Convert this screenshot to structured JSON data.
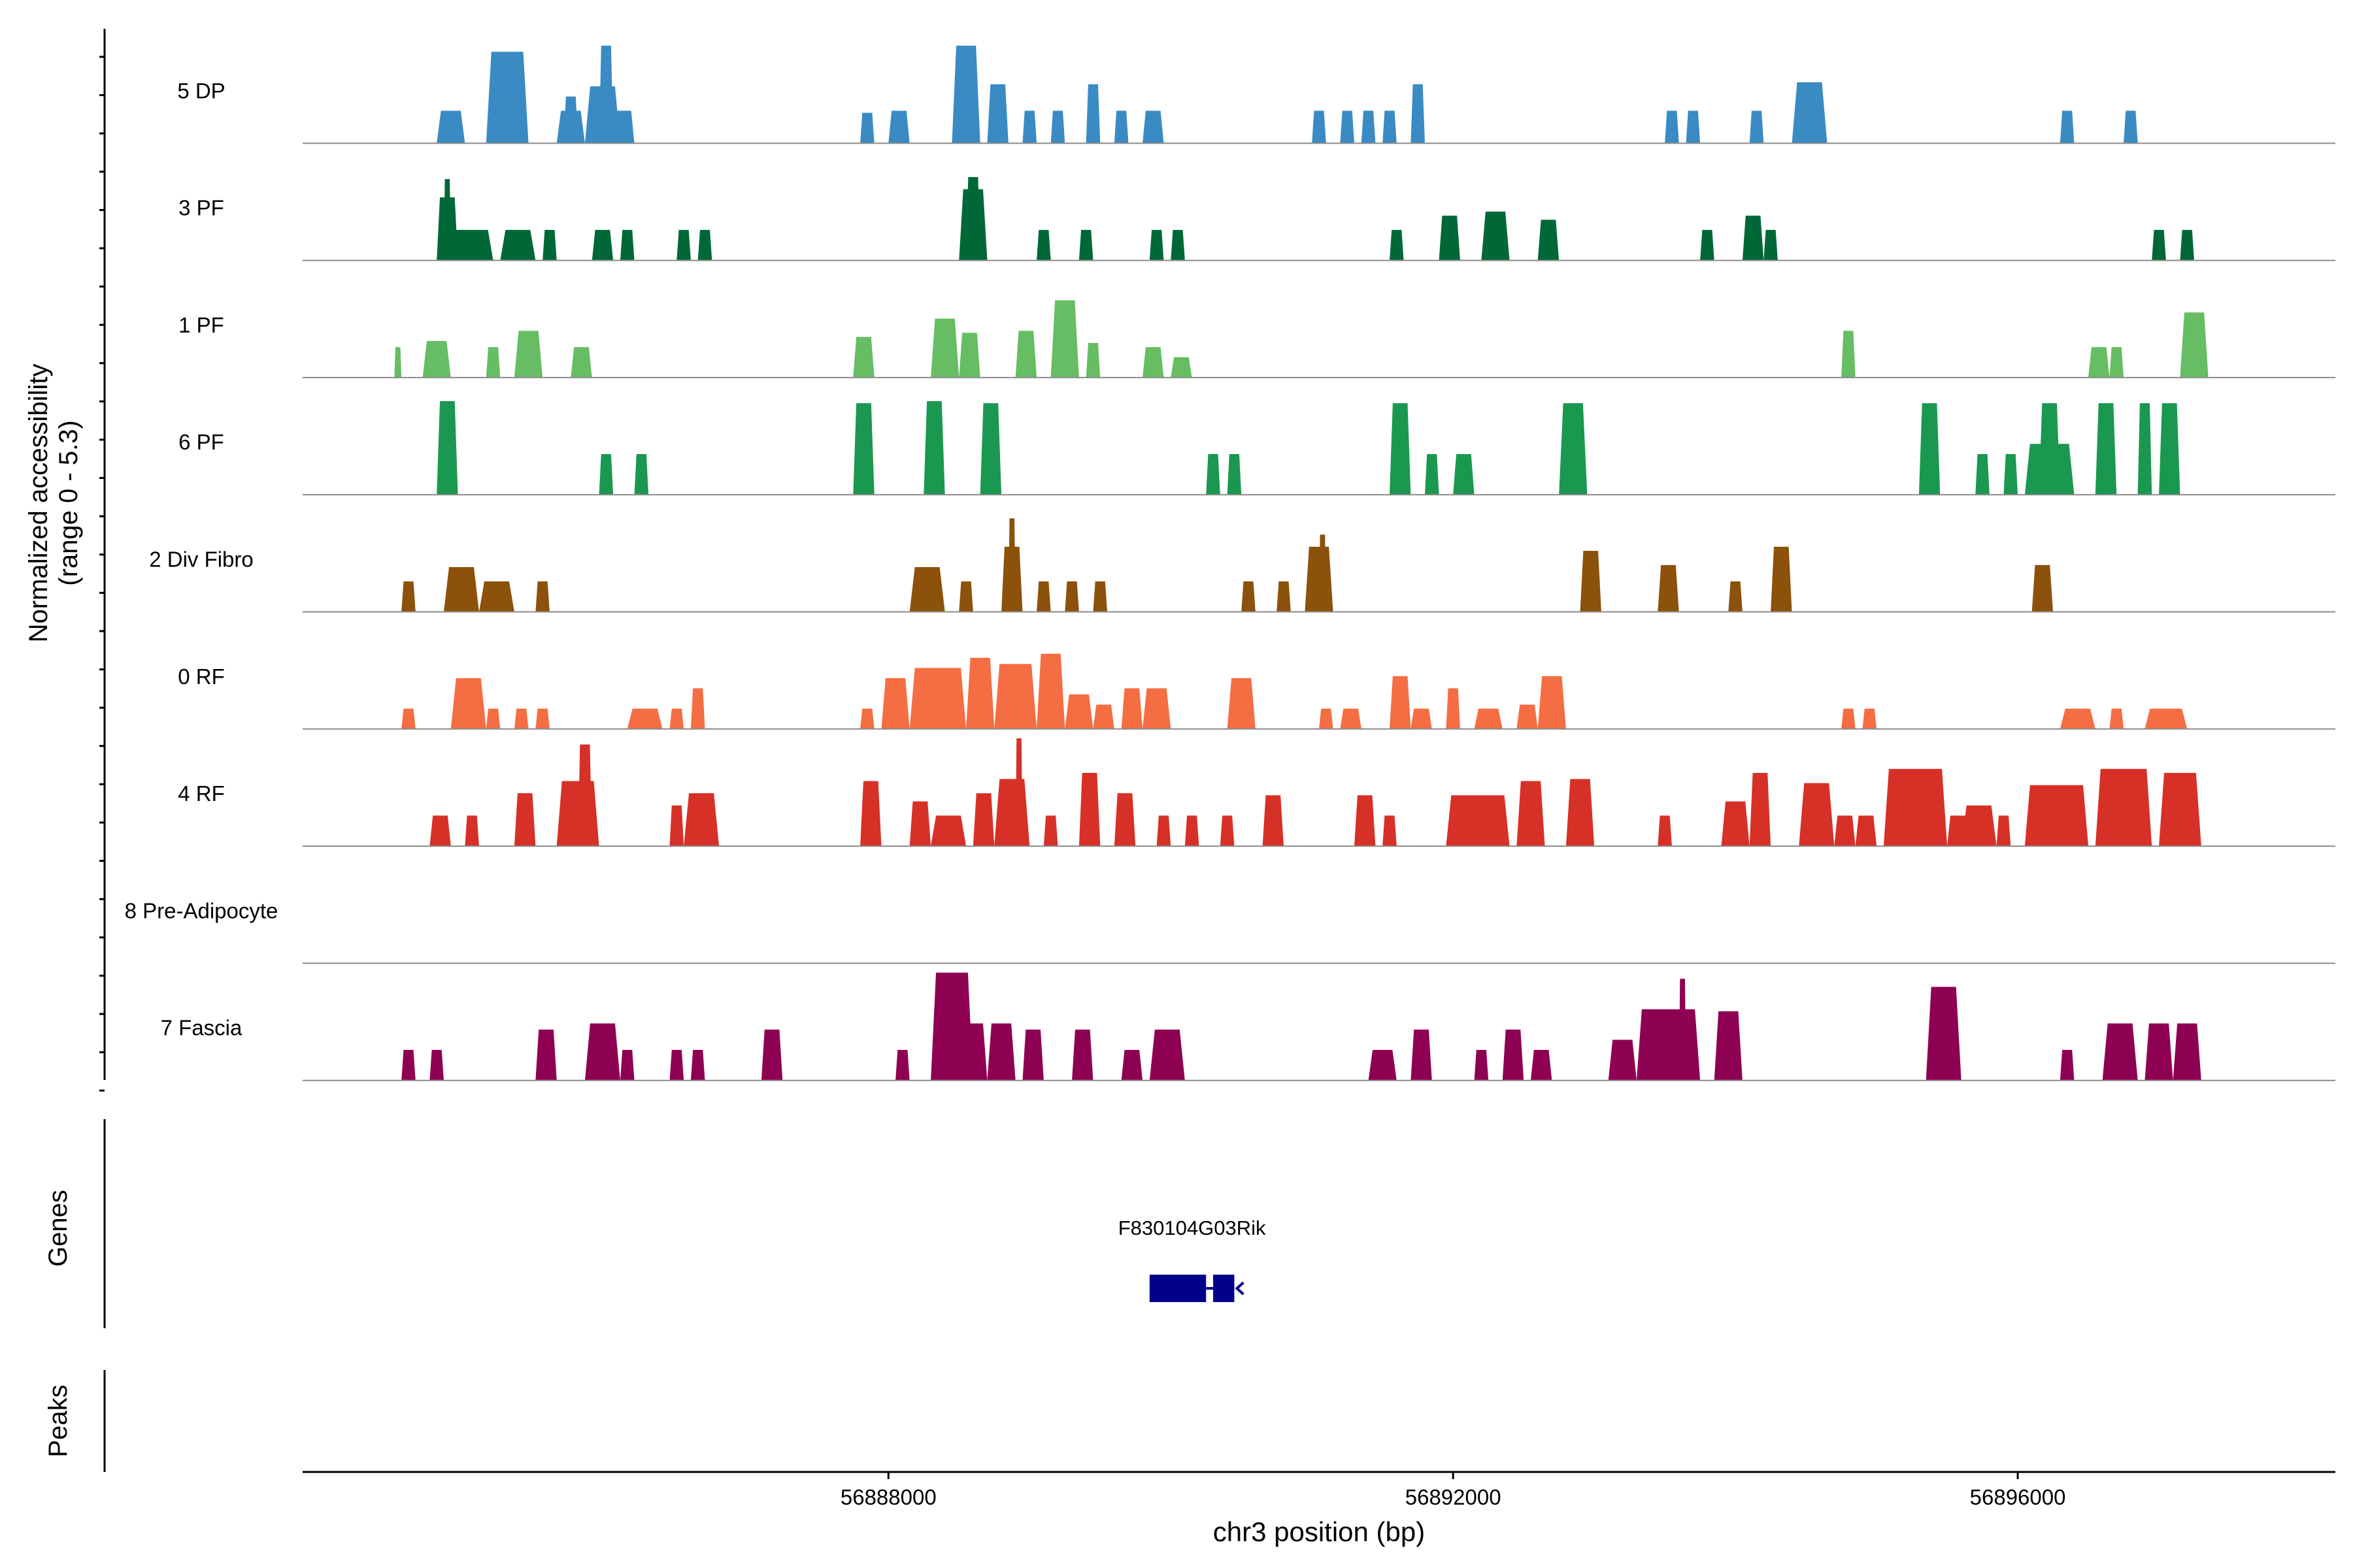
{
  "chart_data": {
    "type": "area",
    "title": "",
    "ylabel": "Normalized accessibility\n(range 0 - 5.3)",
    "y_range": [
      0,
      5.3
    ],
    "xlabel": "chr3 position (bp)",
    "xlim": [
      56883850,
      56898250
    ],
    "x_ticks": [
      56888000,
      56892000,
      56896000
    ],
    "x_tick_labels": [
      "56888000",
      "56892000",
      "56896000"
    ],
    "series": [
      {
        "name": "5 DP",
        "color": "#3A8BC3",
        "peaks": [
          [
            56884800,
            56885000,
            1.6
          ],
          [
            56885150,
            56885450,
            4.5
          ],
          [
            56885200,
            56885400,
            3.4
          ],
          [
            56885650,
            56885850,
            1.6
          ],
          [
            56885700,
            56885800,
            2.3
          ],
          [
            56885850,
            56886100,
            2.8
          ],
          [
            56885950,
            56886050,
            4.8
          ],
          [
            56886050,
            56886200,
            1.6
          ],
          [
            56887800,
            56887900,
            1.5
          ],
          [
            56888000,
            56888150,
            1.6
          ],
          [
            56888450,
            56888650,
            4.8
          ],
          [
            56888500,
            56888600,
            3.1
          ],
          [
            56888700,
            56888850,
            2.9
          ],
          [
            56888950,
            56889050,
            1.6
          ],
          [
            56889150,
            56889250,
            1.6
          ],
          [
            56889400,
            56889500,
            2.9
          ],
          [
            56889600,
            56889700,
            1.6
          ],
          [
            56889800,
            56889950,
            1.6
          ],
          [
            56891000,
            56891100,
            1.6
          ],
          [
            56891200,
            56891300,
            1.6
          ],
          [
            56891350,
            56891450,
            1.6
          ],
          [
            56891500,
            56891600,
            1.6
          ],
          [
            56891700,
            56891800,
            2.9
          ],
          [
            56893500,
            56893600,
            1.6
          ],
          [
            56893650,
            56893750,
            1.6
          ],
          [
            56894100,
            56894200,
            1.6
          ],
          [
            56894400,
            56894650,
            3.0
          ],
          [
            56896300,
            56896400,
            1.6
          ],
          [
            56896750,
            56896850,
            1.6
          ]
        ]
      },
      {
        "name": "3 PF",
        "color": "#006837",
        "peaks": [
          [
            56884800,
            56884950,
            3.1
          ],
          [
            56884850,
            56884900,
            4.0
          ],
          [
            56884900,
            56885200,
            1.5
          ],
          [
            56885250,
            56885500,
            1.5
          ],
          [
            56885550,
            56885650,
            1.5
          ],
          [
            56885900,
            56886050,
            1.5
          ],
          [
            56886100,
            56886200,
            1.5
          ],
          [
            56886500,
            56886600,
            1.5
          ],
          [
            56886650,
            56886750,
            1.5
          ],
          [
            56888500,
            56888700,
            3.5
          ],
          [
            56888550,
            56888650,
            4.1
          ],
          [
            56889050,
            56889150,
            1.5
          ],
          [
            56889350,
            56889450,
            1.5
          ],
          [
            56889850,
            56889950,
            1.5
          ],
          [
            56890000,
            56890100,
            1.5
          ],
          [
            56891550,
            56891650,
            1.5
          ],
          [
            56891900,
            56892050,
            2.2
          ],
          [
            56892200,
            56892400,
            2.4
          ],
          [
            56892600,
            56892750,
            2.0
          ],
          [
            56893750,
            56893850,
            1.5
          ],
          [
            56894050,
            56894200,
            2.2
          ],
          [
            56894200,
            56894300,
            1.5
          ],
          [
            56896950,
            56897050,
            1.5
          ],
          [
            56897150,
            56897250,
            1.5
          ]
        ]
      },
      {
        "name": "1 PF",
        "color": "#66BD63",
        "peaks": [
          [
            56884500,
            56884550,
            1.5
          ],
          [
            56884700,
            56884900,
            1.8
          ],
          [
            56885150,
            56885250,
            1.5
          ],
          [
            56885350,
            56885550,
            2.3
          ],
          [
            56885750,
            56885900,
            1.5
          ],
          [
            56887750,
            56887900,
            2.0
          ],
          [
            56888300,
            56888500,
            2.9
          ],
          [
            56888500,
            56888650,
            2.2
          ],
          [
            56888900,
            56889050,
            2.3
          ],
          [
            56889150,
            56889350,
            3.8
          ],
          [
            56889400,
            56889500,
            1.7
          ],
          [
            56889800,
            56889950,
            1.5
          ],
          [
            56890000,
            56890150,
            1.0
          ],
          [
            56894750,
            56894850,
            2.3
          ],
          [
            56896500,
            56896650,
            1.5
          ],
          [
            56896650,
            56896750,
            1.5
          ],
          [
            56897150,
            56897350,
            3.2
          ]
        ]
      },
      {
        "name": "6 PF",
        "color": "#1A9850",
        "peaks": [
          [
            56884800,
            56884950,
            4.6
          ],
          [
            56885950,
            56886050,
            2.0
          ],
          [
            56886200,
            56886300,
            2.0
          ],
          [
            56887750,
            56887900,
            4.5
          ],
          [
            56888250,
            56888400,
            4.6
          ],
          [
            56888650,
            56888800,
            4.5
          ],
          [
            56890250,
            56890350,
            2.0
          ],
          [
            56890400,
            56890500,
            2.0
          ],
          [
            56891550,
            56891700,
            4.5
          ],
          [
            56891800,
            56891900,
            2.0
          ],
          [
            56892000,
            56892150,
            2.0
          ],
          [
            56892750,
            56892950,
            4.5
          ],
          [
            56895300,
            56895450,
            4.5
          ],
          [
            56895700,
            56895800,
            2.0
          ],
          [
            56895900,
            56896000,
            2.0
          ],
          [
            56896050,
            56896400,
            2.5
          ],
          [
            56896150,
            56896300,
            4.5
          ],
          [
            56896550,
            56896700,
            4.5
          ],
          [
            56896850,
            56896950,
            4.5
          ],
          [
            56897000,
            56897150,
            4.5
          ]
        ]
      },
      {
        "name": "2 Div Fibro",
        "color": "#8C510A",
        "peaks": [
          [
            56884550,
            56884650,
            1.5
          ],
          [
            56884850,
            56885100,
            2.2
          ],
          [
            56885100,
            56885350,
            1.5
          ],
          [
            56885500,
            56885600,
            1.5
          ],
          [
            56888150,
            56888400,
            2.2
          ],
          [
            56888500,
            56888600,
            1.5
          ],
          [
            56888800,
            56888950,
            3.2
          ],
          [
            56888850,
            56888900,
            4.6
          ],
          [
            56889050,
            56889150,
            1.5
          ],
          [
            56889250,
            56889350,
            1.5
          ],
          [
            56889450,
            56889550,
            1.5
          ],
          [
            56890500,
            56890600,
            1.5
          ],
          [
            56890750,
            56890850,
            1.5
          ],
          [
            56890950,
            56891150,
            3.2
          ],
          [
            56891050,
            56891100,
            3.8
          ],
          [
            56892900,
            56893050,
            3.0
          ],
          [
            56893450,
            56893600,
            2.3
          ],
          [
            56893950,
            56894050,
            1.5
          ],
          [
            56894250,
            56894400,
            3.2
          ],
          [
            56896100,
            56896250,
            2.3
          ]
        ]
      },
      {
        "name": "0 RF",
        "color": "#F46D43",
        "peaks": [
          [
            56884550,
            56884650,
            1.0
          ],
          [
            56884900,
            56885150,
            2.5
          ],
          [
            56885150,
            56885250,
            1.0
          ],
          [
            56885350,
            56885450,
            1.0
          ],
          [
            56885500,
            56885600,
            1.0
          ],
          [
            56886150,
            56886400,
            1.0
          ],
          [
            56886450,
            56886550,
            1.0
          ],
          [
            56886600,
            56886700,
            2.0
          ],
          [
            56887800,
            56887900,
            1.0
          ],
          [
            56887950,
            56888150,
            2.5
          ],
          [
            56888150,
            56888550,
            3.0
          ],
          [
            56888550,
            56888750,
            3.5
          ],
          [
            56888750,
            56889050,
            3.2
          ],
          [
            56889050,
            56889250,
            3.7
          ],
          [
            56889250,
            56889450,
            1.7
          ],
          [
            56889450,
            56889600,
            1.2
          ],
          [
            56889650,
            56889800,
            2.0
          ],
          [
            56889800,
            56890000,
            2.0
          ],
          [
            56890400,
            56890600,
            2.5
          ],
          [
            56891050,
            56891150,
            1.0
          ],
          [
            56891200,
            56891350,
            1.0
          ],
          [
            56891550,
            56891700,
            2.6
          ],
          [
            56891700,
            56891850,
            1.0
          ],
          [
            56891950,
            56892050,
            2.0
          ],
          [
            56892150,
            56892350,
            1.0
          ],
          [
            56892450,
            56892600,
            1.2
          ],
          [
            56892600,
            56892800,
            2.6
          ],
          [
            56894750,
            56894850,
            1.0
          ],
          [
            56894900,
            56895000,
            1.0
          ],
          [
            56896300,
            56896550,
            1.0
          ],
          [
            56896650,
            56896750,
            1.0
          ],
          [
            56896900,
            56897200,
            1.0
          ]
        ]
      },
      {
        "name": "4 RF",
        "color": "#D73027",
        "peaks": [
          [
            56884750,
            56884900,
            1.5
          ],
          [
            56885000,
            56885100,
            1.5
          ],
          [
            56885350,
            56885500,
            2.6
          ],
          [
            56885650,
            56885950,
            3.2
          ],
          [
            56885800,
            56885900,
            5.0
          ],
          [
            56886450,
            56886550,
            2.0
          ],
          [
            56886550,
            56886800,
            2.6
          ],
          [
            56887800,
            56887950,
            3.2
          ],
          [
            56888150,
            56888300,
            2.2
          ],
          [
            56888300,
            56888550,
            1.5
          ],
          [
            56888600,
            56888750,
            2.6
          ],
          [
            56888750,
            56889000,
            3.3
          ],
          [
            56888900,
            56888950,
            5.3
          ],
          [
            56889100,
            56889200,
            1.5
          ],
          [
            56889350,
            56889500,
            3.6
          ],
          [
            56889600,
            56889750,
            2.6
          ],
          [
            56889900,
            56890000,
            1.5
          ],
          [
            56890100,
            56890200,
            1.5
          ],
          [
            56890350,
            56890450,
            1.5
          ],
          [
            56890650,
            56890800,
            2.5
          ],
          [
            56891300,
            56891450,
            2.5
          ],
          [
            56891500,
            56891600,
            1.5
          ],
          [
            56891950,
            56892400,
            2.5
          ],
          [
            56892450,
            56892650,
            3.2
          ],
          [
            56892800,
            56893000,
            3.3
          ],
          [
            56893450,
            56893550,
            1.5
          ],
          [
            56893900,
            56894100,
            2.2
          ],
          [
            56894100,
            56894250,
            3.6
          ],
          [
            56894450,
            56894700,
            3.1
          ],
          [
            56894700,
            56894850,
            1.5
          ],
          [
            56894850,
            56895000,
            1.5
          ],
          [
            56895050,
            56895500,
            3.8
          ],
          [
            56895500,
            56895650,
            1.5
          ],
          [
            56895600,
            56895850,
            2.0
          ],
          [
            56895850,
            56895950,
            1.5
          ],
          [
            56896050,
            56896500,
            3.0
          ],
          [
            56896550,
            56896950,
            3.8
          ],
          [
            56897000,
            56897300,
            3.6
          ]
        ]
      },
      {
        "name": "8 Pre-Adipocyte",
        "color": "#F1B6DA",
        "peaks": []
      },
      {
        "name": "7 Fascia",
        "color": "#8E0152",
        "peaks": [
          [
            56884550,
            56884650,
            1.5
          ],
          [
            56884750,
            56884850,
            1.5
          ],
          [
            56885500,
            56885650,
            2.5
          ],
          [
            56885850,
            56886100,
            2.8
          ],
          [
            56886100,
            56886200,
            1.5
          ],
          [
            56886450,
            56886550,
            1.5
          ],
          [
            56886600,
            56886700,
            1.5
          ],
          [
            56887100,
            56887250,
            2.5
          ],
          [
            56888050,
            56888150,
            1.5
          ],
          [
            56888300,
            56888600,
            5.3
          ],
          [
            56888500,
            56888700,
            2.8
          ],
          [
            56888700,
            56888900,
            2.8
          ],
          [
            56888950,
            56889100,
            2.5
          ],
          [
            56889300,
            56889450,
            2.5
          ],
          [
            56889650,
            56889800,
            1.5
          ],
          [
            56889850,
            56890100,
            2.5
          ],
          [
            56891400,
            56891600,
            1.5
          ],
          [
            56891700,
            56891850,
            2.5
          ],
          [
            56892150,
            56892250,
            1.5
          ],
          [
            56892350,
            56892500,
            2.5
          ],
          [
            56892550,
            56892700,
            1.5
          ],
          [
            56893100,
            56893300,
            2.0
          ],
          [
            56893300,
            56893750,
            3.5
          ],
          [
            56893600,
            56893650,
            5.0
          ],
          [
            56893850,
            56894050,
            3.4
          ],
          [
            56895350,
            56895600,
            4.6
          ],
          [
            56896300,
            56896400,
            1.5
          ],
          [
            56896600,
            56896850,
            2.8
          ],
          [
            56896900,
            56897100,
            2.8
          ],
          [
            56897100,
            56897300,
            2.8
          ]
        ]
      }
    ]
  },
  "genes_track": {
    "label": "Genes",
    "genes": [
      {
        "name": "F830104G03Rik",
        "strand": "-",
        "start": 56889850,
        "end": 56890450,
        "exons": [
          [
            56889850,
            56890250
          ],
          [
            56890300,
            56890450
          ]
        ]
      }
    ]
  },
  "peaks_track": {
    "label": "Peaks",
    "peaks": []
  }
}
